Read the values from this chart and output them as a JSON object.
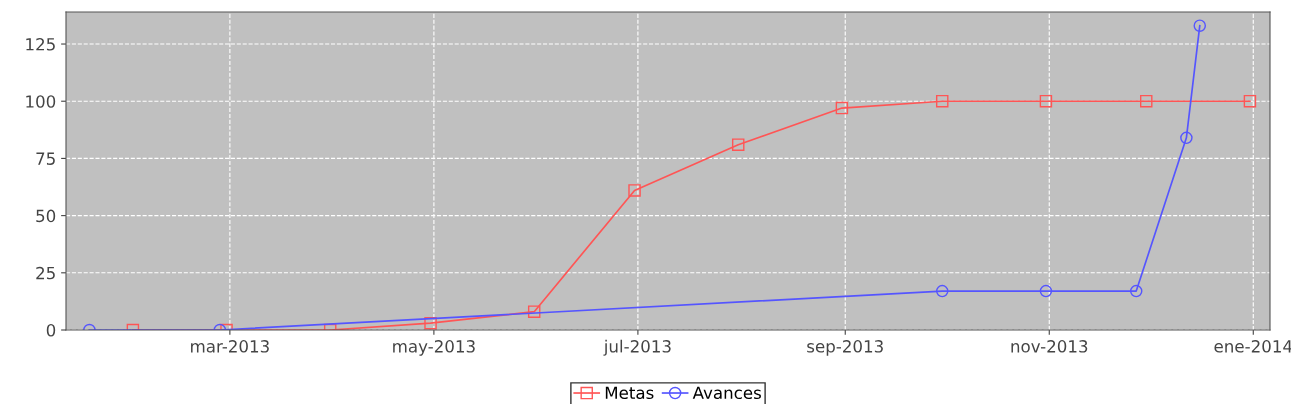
{
  "chart_data": {
    "type": "line",
    "series": [
      {
        "name": "Metas",
        "color": "#ff5555",
        "marker": "square",
        "x": [
          "2013-01-31",
          "2013-02-28",
          "2013-03-31",
          "2013-04-30",
          "2013-05-31",
          "2013-06-30",
          "2013-07-31",
          "2013-08-31",
          "2013-09-30",
          "2013-10-31",
          "2013-11-30",
          "2013-12-31"
        ],
        "values": [
          0,
          0,
          0,
          3,
          8,
          61,
          81,
          97,
          100,
          100,
          100,
          100
        ]
      },
      {
        "name": "Avances",
        "color": "#5555ff",
        "marker": "circle",
        "x": [
          "2013-01-18",
          "2013-02-26",
          "2013-09-30",
          "2013-10-31",
          "2013-11-27",
          "2013-12-12",
          "2013-12-16"
        ],
        "values": [
          0,
          0,
          17,
          17,
          17,
          84,
          133
        ]
      }
    ],
    "xlim": [
      "2013-01-11",
      "2014-01-06"
    ],
    "xticks": [
      {
        "value": "2013-03-01",
        "label": "mar-2013"
      },
      {
        "value": "2013-05-01",
        "label": "may-2013"
      },
      {
        "value": "2013-07-01",
        "label": "jul-2013"
      },
      {
        "value": "2013-09-01",
        "label": "sep-2013"
      },
      {
        "value": "2013-11-01",
        "label": "nov-2013"
      },
      {
        "value": "2014-01-01",
        "label": "ene-2014"
      }
    ],
    "ylim": [
      0,
      139
    ],
    "yticks": [
      0,
      25,
      50,
      75,
      100,
      125
    ],
    "grid": true,
    "legend": "bottom",
    "line_style": "solid"
  }
}
